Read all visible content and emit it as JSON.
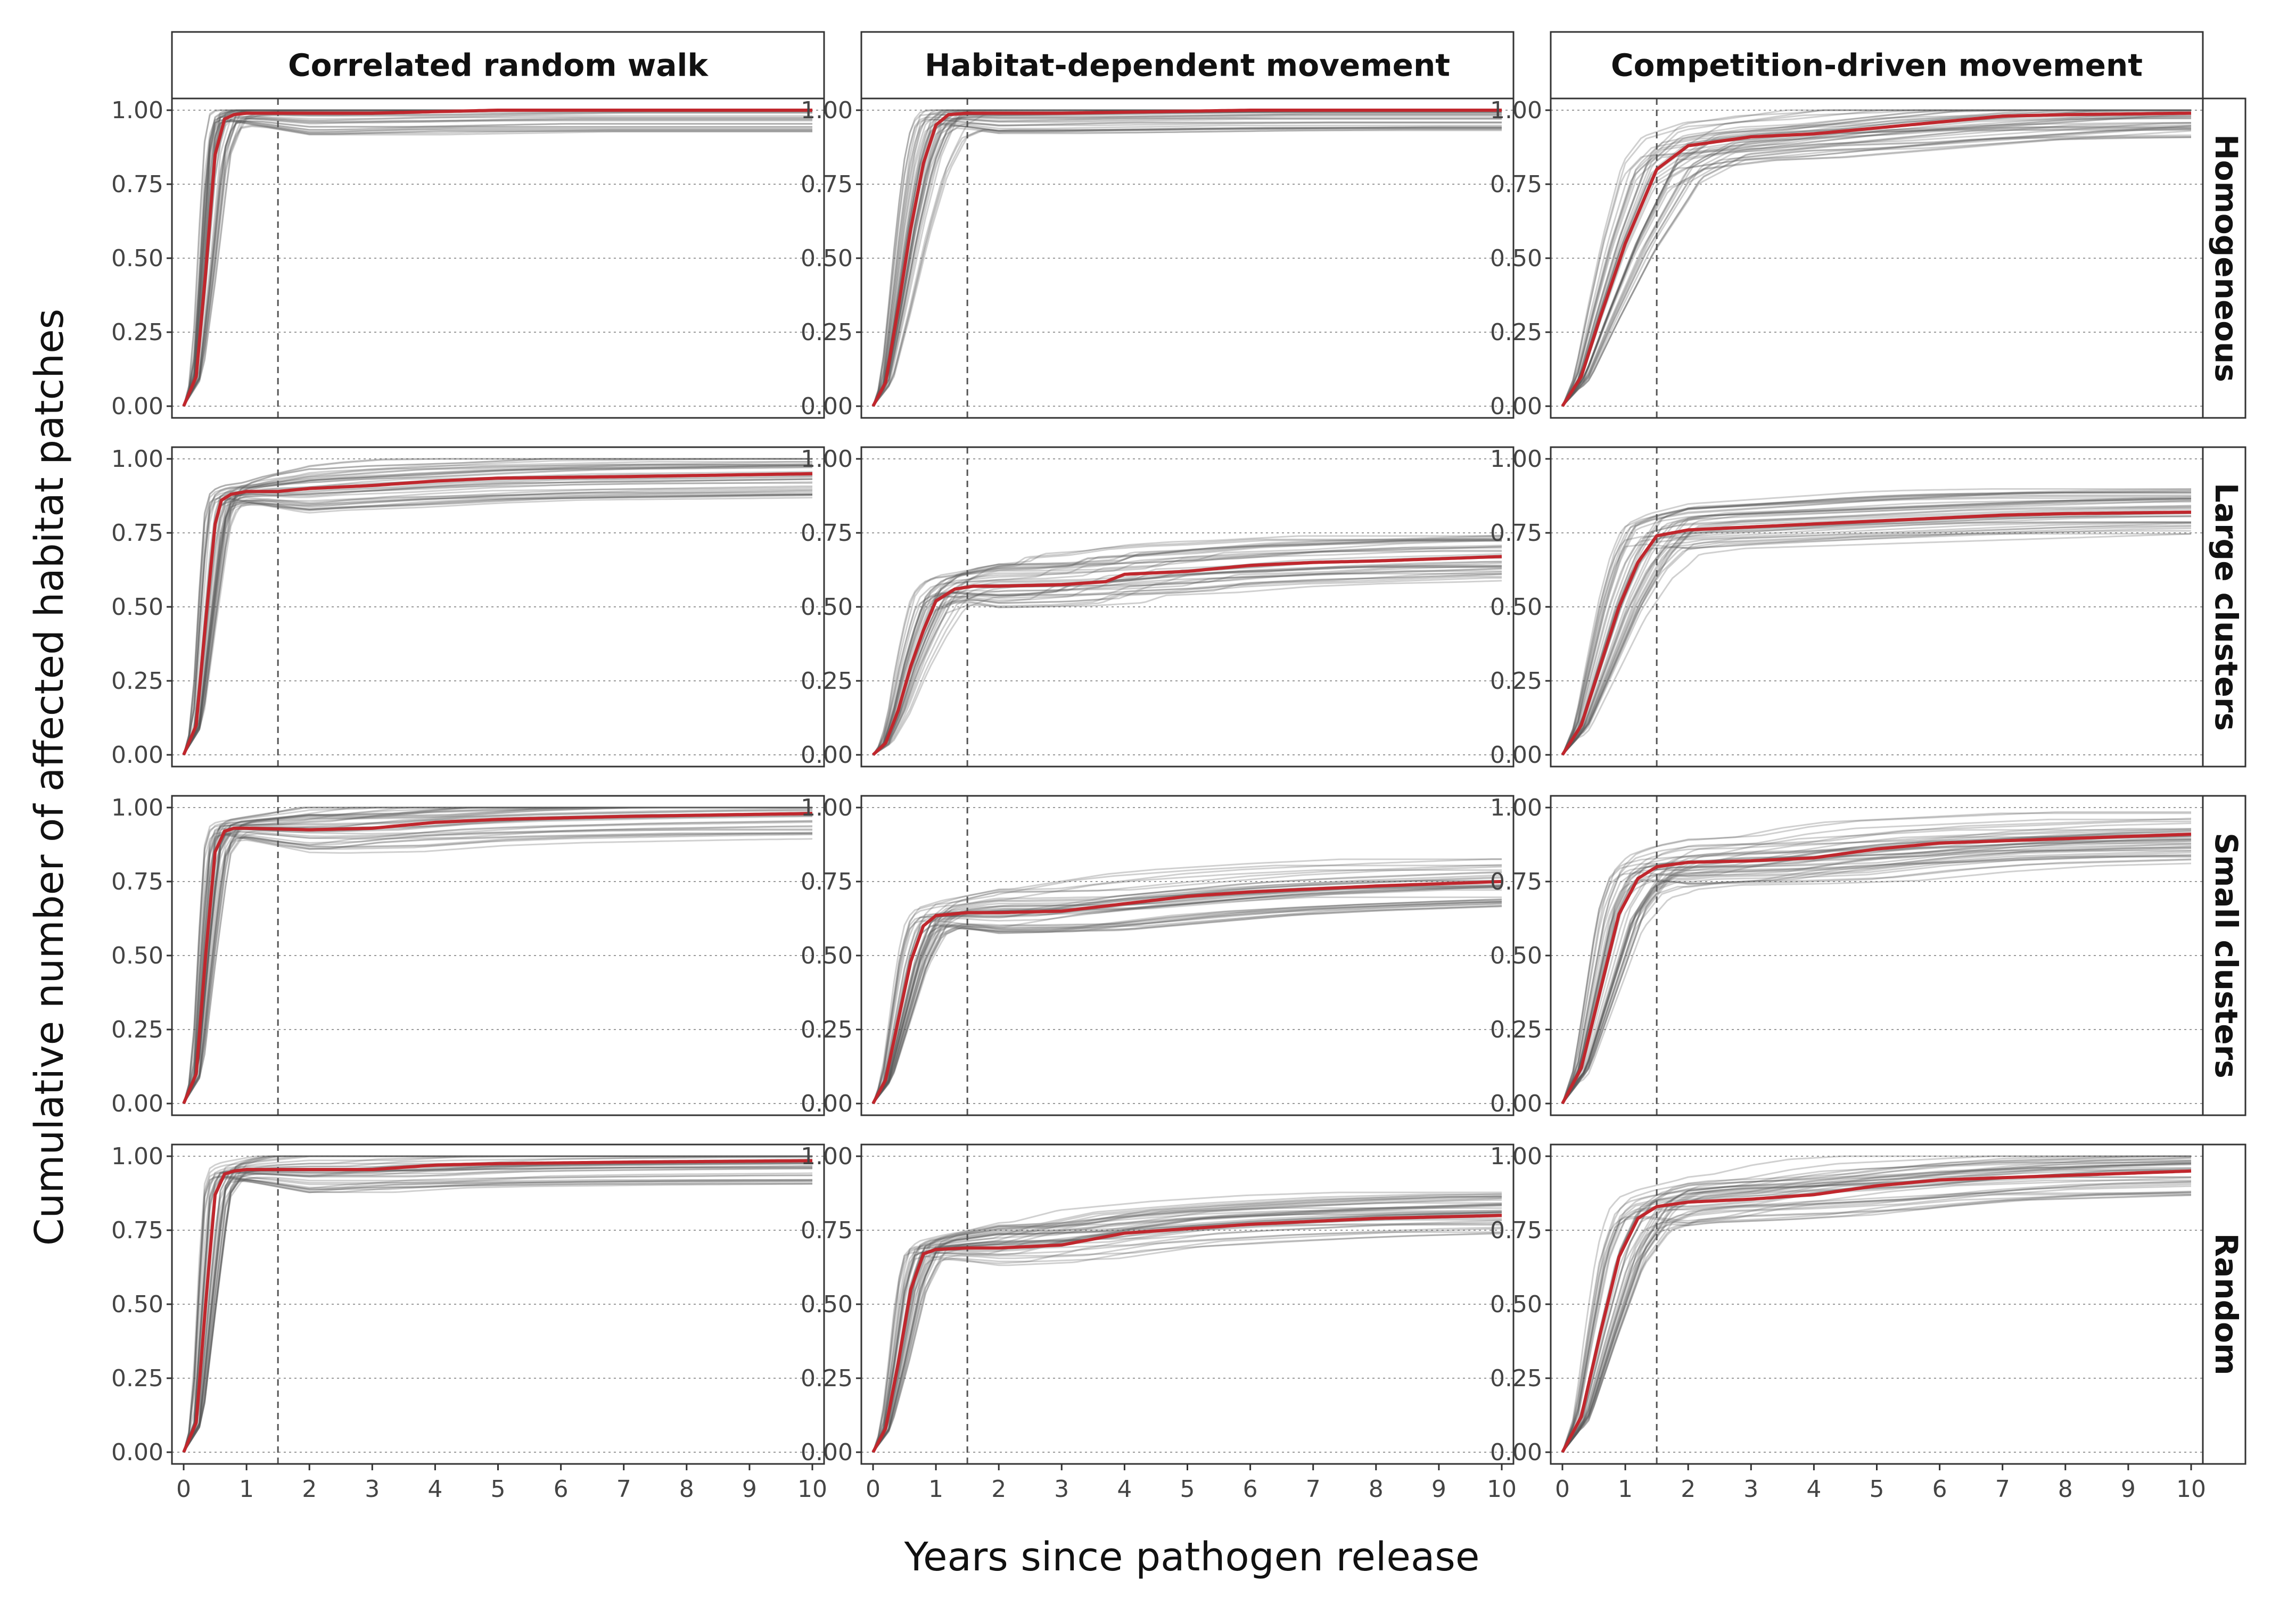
{
  "chart_data": {
    "type": "line",
    "xlabel": "Years since pathogen release",
    "ylabel": "Cumulative number of affected habitat patches",
    "columns": [
      "Correlated random walk",
      "Habitat-dependent movement",
      "Competition-driven movement"
    ],
    "rows": [
      "Homogeneous",
      "Large clusters",
      "Small clusters",
      "Random"
    ],
    "x_ticks": [
      "0",
      "1",
      "2",
      "3",
      "4",
      "5",
      "6",
      "7",
      "8",
      "9",
      "10"
    ],
    "y_ticks": [
      "0.00",
      "0.25",
      "0.50",
      "0.75",
      "1.00"
    ],
    "xlim": [
      0,
      10
    ],
    "ylim": [
      0,
      1
    ],
    "reference_line_x": 1.5,
    "grid": "horizontal dotted",
    "colors": {
      "mean_line": "#c0272d",
      "replicate_lines": "#555555",
      "reference_line": "#555555"
    },
    "panels": [
      {
        "row": "Homogeneous",
        "column": "Correlated random walk",
        "mean_series": {
          "x": [
            0,
            0.2,
            0.35,
            0.5,
            0.65,
            0.8,
            1.0,
            1.5,
            3,
            5,
            6,
            10
          ],
          "y": [
            0,
            0.1,
            0.45,
            0.85,
            0.97,
            0.985,
            0.99,
            0.99,
            0.99,
            1.0,
            1.0,
            1.0
          ]
        }
      },
      {
        "row": "Homogeneous",
        "column": "Habitat-dependent movement",
        "mean_series": {
          "x": [
            0,
            0.2,
            0.4,
            0.6,
            0.8,
            1.0,
            1.2,
            1.5,
            3,
            6,
            10
          ],
          "y": [
            0,
            0.08,
            0.33,
            0.6,
            0.82,
            0.95,
            0.985,
            0.99,
            0.99,
            1.0,
            1.0
          ]
        }
      },
      {
        "row": "Homogeneous",
        "column": "Competition-driven movement",
        "mean_series": {
          "x": [
            0,
            0.3,
            0.6,
            1.0,
            1.5,
            2.0,
            3.0,
            4.0,
            5.0,
            6.0,
            7.0,
            8.0,
            10
          ],
          "y": [
            0,
            0.1,
            0.3,
            0.55,
            0.8,
            0.88,
            0.91,
            0.92,
            0.94,
            0.96,
            0.98,
            0.985,
            0.99
          ]
        }
      },
      {
        "row": "Large clusters",
        "column": "Correlated random walk",
        "mean_series": {
          "x": [
            0,
            0.2,
            0.35,
            0.5,
            0.6,
            0.75,
            1.0,
            1.5,
            2,
            3,
            4,
            5,
            7,
            10
          ],
          "y": [
            0,
            0.1,
            0.45,
            0.78,
            0.86,
            0.88,
            0.89,
            0.89,
            0.9,
            0.91,
            0.925,
            0.935,
            0.94,
            0.95
          ]
        }
      },
      {
        "row": "Large clusters",
        "column": "Habitat-dependent movement",
        "mean_series": {
          "x": [
            0,
            0.2,
            0.4,
            0.6,
            0.8,
            1.0,
            1.3,
            1.6,
            2,
            3,
            3.7,
            4,
            5,
            6,
            7,
            8,
            10
          ],
          "y": [
            0,
            0.04,
            0.15,
            0.3,
            0.42,
            0.52,
            0.56,
            0.57,
            0.57,
            0.575,
            0.585,
            0.61,
            0.62,
            0.64,
            0.65,
            0.655,
            0.67
          ]
        }
      },
      {
        "row": "Large clusters",
        "column": "Competition-driven movement",
        "mean_series": {
          "x": [
            0,
            0.3,
            0.6,
            0.9,
            1.2,
            1.5,
            2,
            3,
            4,
            5,
            6,
            7,
            8,
            10
          ],
          "y": [
            0,
            0.1,
            0.3,
            0.5,
            0.65,
            0.74,
            0.76,
            0.77,
            0.78,
            0.79,
            0.8,
            0.81,
            0.815,
            0.82
          ]
        }
      },
      {
        "row": "Small clusters",
        "column": "Correlated random walk",
        "mean_series": {
          "x": [
            0,
            0.2,
            0.35,
            0.5,
            0.65,
            0.8,
            1.0,
            2,
            3,
            4,
            5,
            7,
            10
          ],
          "y": [
            0,
            0.1,
            0.5,
            0.85,
            0.92,
            0.93,
            0.93,
            0.925,
            0.93,
            0.95,
            0.96,
            0.97,
            0.98
          ]
        }
      },
      {
        "row": "Small clusters",
        "column": "Habitat-dependent movement",
        "mean_series": {
          "x": [
            0,
            0.2,
            0.4,
            0.6,
            0.8,
            1.0,
            1.5,
            2,
            3,
            4,
            5,
            6,
            7,
            8,
            10
          ],
          "y": [
            0,
            0.08,
            0.28,
            0.48,
            0.6,
            0.635,
            0.645,
            0.645,
            0.65,
            0.675,
            0.7,
            0.715,
            0.725,
            0.735,
            0.75
          ]
        }
      },
      {
        "row": "Small clusters",
        "column": "Competition-driven movement",
        "mean_series": {
          "x": [
            0,
            0.3,
            0.6,
            0.9,
            1.2,
            1.5,
            2,
            3,
            4,
            5,
            6,
            8,
            10
          ],
          "y": [
            0,
            0.12,
            0.38,
            0.64,
            0.76,
            0.8,
            0.815,
            0.82,
            0.83,
            0.86,
            0.88,
            0.895,
            0.91
          ]
        }
      },
      {
        "row": "Random",
        "column": "Correlated random walk",
        "mean_series": {
          "x": [
            0,
            0.2,
            0.35,
            0.5,
            0.65,
            0.8,
            1.0,
            2,
            3,
            4,
            5,
            7,
            10
          ],
          "y": [
            0,
            0.1,
            0.5,
            0.87,
            0.94,
            0.95,
            0.955,
            0.955,
            0.955,
            0.97,
            0.975,
            0.98,
            0.985
          ]
        }
      },
      {
        "row": "Random",
        "column": "Habitat-dependent movement",
        "mean_series": {
          "x": [
            0,
            0.2,
            0.4,
            0.6,
            0.8,
            1.0,
            1.5,
            2,
            3,
            4,
            5,
            6,
            7,
            8,
            10
          ],
          "y": [
            0,
            0.08,
            0.3,
            0.55,
            0.67,
            0.685,
            0.69,
            0.69,
            0.7,
            0.74,
            0.755,
            0.77,
            0.78,
            0.79,
            0.8
          ]
        }
      },
      {
        "row": "Random",
        "column": "Competition-driven movement",
        "mean_series": {
          "x": [
            0,
            0.3,
            0.6,
            0.9,
            1.2,
            1.5,
            2,
            3,
            4,
            5,
            6,
            8,
            10
          ],
          "y": [
            0,
            0.12,
            0.4,
            0.66,
            0.79,
            0.83,
            0.845,
            0.855,
            0.87,
            0.9,
            0.92,
            0.935,
            0.95
          ]
        }
      }
    ]
  }
}
